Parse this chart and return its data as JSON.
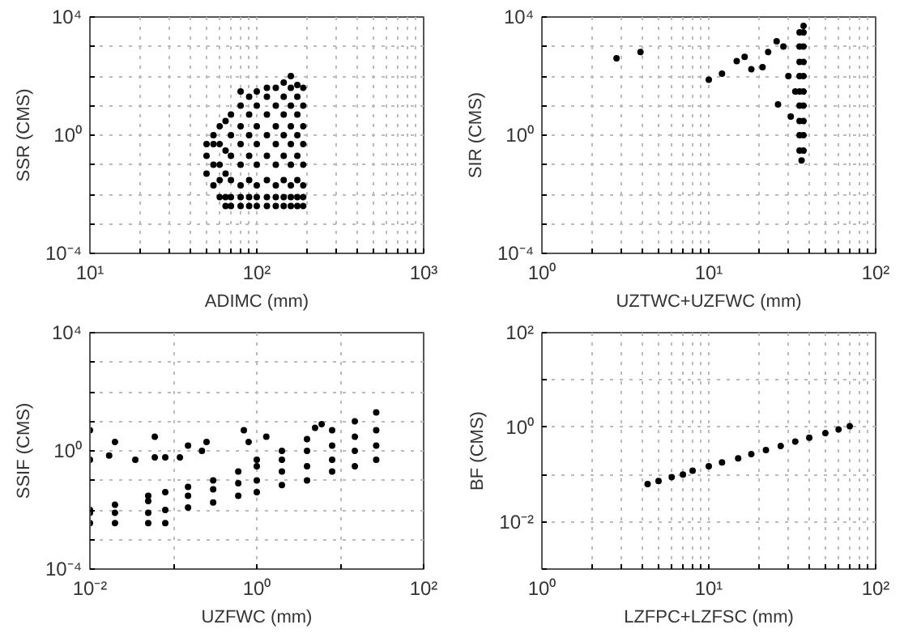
{
  "chart_data": [
    {
      "type": "scatter",
      "xlabel": "ADIMC (mm)",
      "ylabel": "SSR (CMS)",
      "log": "xy",
      "grid": true,
      "marker": "circle",
      "color": "#000000",
      "xlim": [
        10,
        1000
      ],
      "ylim": [
        0.0001,
        10000
      ],
      "xticks": [
        {
          "value": 10,
          "label": "10¹"
        },
        {
          "value": 20,
          "label": null
        },
        {
          "value": 30,
          "label": null
        },
        {
          "value": 40,
          "label": null
        },
        {
          "value": 50,
          "label": null
        },
        {
          "value": 60,
          "label": null
        },
        {
          "value": 70,
          "label": null
        },
        {
          "value": 80,
          "label": null
        },
        {
          "value": 90,
          "label": null
        },
        {
          "value": 100,
          "label": "10²"
        },
        {
          "value": 200,
          "label": null
        },
        {
          "value": 300,
          "label": null
        },
        {
          "value": 400,
          "label": null
        },
        {
          "value": 500,
          "label": null
        },
        {
          "value": 600,
          "label": null
        },
        {
          "value": 700,
          "label": null
        },
        {
          "value": 800,
          "label": null
        },
        {
          "value": 900,
          "label": null
        },
        {
          "value": 1000,
          "label": "10³"
        }
      ],
      "yticks": [
        {
          "value": 0.0001,
          "label": "10⁻⁴"
        },
        {
          "value": 0.001,
          "label": null
        },
        {
          "value": 0.01,
          "label": null
        },
        {
          "value": 0.1,
          "label": null
        },
        {
          "value": 1,
          "label": "10⁰"
        },
        {
          "value": 10,
          "label": null
        },
        {
          "value": 100,
          "label": null
        },
        {
          "value": 1000,
          "label": null
        },
        {
          "value": 10000,
          "label": "10⁴"
        }
      ],
      "x": [
        50,
        50,
        50,
        55,
        55,
        55,
        55,
        60,
        60,
        60,
        60,
        60,
        65,
        65,
        65,
        65,
        65,
        70,
        70,
        70,
        70,
        70,
        70,
        80,
        80,
        80,
        80,
        80,
        80,
        80,
        80,
        90,
        90,
        90,
        90,
        90,
        90,
        90,
        100,
        100,
        100,
        100,
        100,
        100,
        100,
        100,
        115,
        115,
        115,
        115,
        115,
        115,
        115,
        115,
        130,
        130,
        130,
        130,
        130,
        130,
        130,
        130,
        145,
        145,
        145,
        145,
        145,
        145,
        145,
        145,
        160,
        160,
        160,
        160,
        160,
        160,
        160,
        160,
        160,
        175,
        175,
        175,
        175,
        175,
        175,
        175,
        175,
        190,
        190,
        190,
        190,
        190,
        190,
        190,
        190
      ],
      "values": [
        0.05,
        0.2,
        0.5,
        0.02,
        0.1,
        0.5,
        1,
        0.008,
        0.03,
        0.1,
        0.5,
        2,
        0.004,
        0.008,
        0.05,
        0.3,
        3,
        0.004,
        0.008,
        0.03,
        0.2,
        1,
        5,
        0.004,
        0.008,
        0.02,
        0.1,
        0.5,
        2,
        10,
        30,
        0.004,
        0.008,
        0.03,
        0.2,
        1,
        5,
        20,
        0.004,
        0.008,
        0.02,
        0.1,
        0.5,
        2,
        10,
        30,
        0.004,
        0.008,
        0.03,
        0.2,
        1,
        5,
        20,
        40,
        0.004,
        0.008,
        0.02,
        0.1,
        0.5,
        2,
        10,
        40,
        0.004,
        0.008,
        0.03,
        0.2,
        1,
        5,
        20,
        60,
        0.004,
        0.008,
        0.02,
        0.1,
        0.5,
        2,
        10,
        40,
        100,
        0.004,
        0.008,
        0.03,
        0.2,
        1,
        5,
        20,
        50,
        0.004,
        0.008,
        0.02,
        0.1,
        0.5,
        2,
        10,
        40
      ]
    },
    {
      "type": "scatter",
      "xlabel": "UZTWC+UZFWC (mm)",
      "ylabel": "SIR (CMS)",
      "log": "xy",
      "grid": true,
      "marker": "circle",
      "color": "#000000",
      "xlim": [
        1,
        100
      ],
      "ylim": [
        0.0001,
        10000
      ],
      "xticks": [
        {
          "value": 1,
          "label": "10⁰"
        },
        {
          "value": 2,
          "label": null
        },
        {
          "value": 3,
          "label": null
        },
        {
          "value": 4,
          "label": null
        },
        {
          "value": 5,
          "label": null
        },
        {
          "value": 6,
          "label": null
        },
        {
          "value": 7,
          "label": null
        },
        {
          "value": 8,
          "label": null
        },
        {
          "value": 9,
          "label": null
        },
        {
          "value": 10,
          "label": "10¹"
        },
        {
          "value": 20,
          "label": null
        },
        {
          "value": 30,
          "label": null
        },
        {
          "value": 40,
          "label": null
        },
        {
          "value": 50,
          "label": null
        },
        {
          "value": 60,
          "label": null
        },
        {
          "value": 70,
          "label": null
        },
        {
          "value": 80,
          "label": null
        },
        {
          "value": 90,
          "label": null
        },
        {
          "value": 100,
          "label": "10²"
        }
      ],
      "yticks": [
        {
          "value": 0.0001,
          "label": "10⁻⁴"
        },
        {
          "value": 0.001,
          "label": null
        },
        {
          "value": 0.01,
          "label": null
        },
        {
          "value": 0.1,
          "label": null
        },
        {
          "value": 1,
          "label": "10⁰"
        },
        {
          "value": 10,
          "label": null
        },
        {
          "value": 100,
          "label": null
        },
        {
          "value": 1000,
          "label": null
        },
        {
          "value": 10000,
          "label": "10⁴"
        }
      ],
      "x": [
        2.8,
        3.9,
        10,
        12,
        14.7,
        16.4,
        18,
        21,
        22.7,
        25.5,
        26,
        31,
        30,
        33,
        28,
        36,
        35,
        35,
        35,
        35,
        35,
        35,
        35,
        35,
        35,
        37,
        37,
        37,
        37,
        37,
        37,
        37,
        37,
        37,
        37
      ],
      "values": [
        400,
        650,
        75,
        120,
        320,
        450,
        170,
        200,
        650,
        1500,
        11,
        4.3,
        100,
        30,
        1000,
        0.14,
        0.3,
        1,
        3,
        10,
        30,
        100,
        300,
        1000,
        3000,
        0.3,
        1,
        3,
        10,
        30,
        100,
        300,
        1000,
        3000,
        5000
      ]
    },
    {
      "type": "scatter",
      "xlabel": "UZFWC (mm)",
      "ylabel": "SSIF (CMS)",
      "log": "xy",
      "grid": true,
      "marker": "circle",
      "color": "#000000",
      "xlim": [
        0.01,
        100
      ],
      "ylim": [
        0.0001,
        10000
      ],
      "xticks": [
        {
          "value": 0.01,
          "label": "10⁻²"
        },
        {
          "value": 0.1,
          "label": null
        },
        {
          "value": 1,
          "label": "10⁰"
        },
        {
          "value": 10,
          "label": null
        },
        {
          "value": 100,
          "label": "10²"
        }
      ],
      "yticks": [
        {
          "value": 0.0001,
          "label": "10⁻⁴"
        },
        {
          "value": 0.001,
          "label": null
        },
        {
          "value": 0.01,
          "label": null
        },
        {
          "value": 0.1,
          "label": null
        },
        {
          "value": 1,
          "label": "10⁰"
        },
        {
          "value": 10,
          "label": null
        },
        {
          "value": 100,
          "label": null
        },
        {
          "value": 1000,
          "label": null
        },
        {
          "value": 10000,
          "label": "10⁴"
        }
      ],
      "x": [
        0.01,
        0.01,
        0.01,
        0.02,
        0.02,
        0.02,
        0.05,
        0.05,
        0.05,
        0.05,
        0.08,
        0.08,
        0.08,
        0.15,
        0.15,
        0.15,
        0.3,
        0.3,
        0.3,
        0.6,
        0.6,
        0.6,
        1,
        1,
        1,
        1,
        2,
        2,
        2,
        2,
        4,
        4,
        4,
        4,
        8,
        8,
        8,
        8,
        15,
        15,
        15,
        15,
        27,
        27,
        27,
        27,
        0.01,
        0.01,
        0.017,
        0.02,
        0.035,
        0.06,
        0.06,
        0.08,
        0.12,
        0.15,
        0.22,
        0.25,
        0.7,
        0.8,
        1.3,
        5,
        6
      ],
      "values": [
        0.0036,
        0.008,
        0.01,
        0.0036,
        0.008,
        0.015,
        0.0036,
        0.008,
        0.02,
        0.03,
        0.0036,
        0.01,
        0.04,
        0.012,
        0.03,
        0.06,
        0.018,
        0.05,
        0.1,
        0.03,
        0.08,
        0.2,
        0.04,
        0.1,
        0.3,
        0.5,
        0.07,
        0.2,
        0.5,
        1,
        0.1,
        0.3,
        1,
        2.5,
        0.2,
        0.5,
        1.5,
        5,
        0.3,
        1,
        3,
        10,
        0.5,
        1.5,
        5,
        20,
        5,
        0.5,
        0.7,
        2,
        0.5,
        3,
        0.6,
        0.6,
        0.6,
        1.5,
        1,
        2,
        5,
        2,
        3,
        6,
        8
      ]
    },
    {
      "type": "scatter",
      "xlabel": "LZFPC+LZFSC (mm)",
      "ylabel": "BF (CMS)",
      "log": "xy",
      "grid": true,
      "marker": "circle",
      "color": "#000000",
      "xlim": [
        1,
        100
      ],
      "ylim": [
        0.001,
        100
      ],
      "xticks": [
        {
          "value": 1,
          "label": "10⁰"
        },
        {
          "value": 2,
          "label": null
        },
        {
          "value": 3,
          "label": null
        },
        {
          "value": 4,
          "label": null
        },
        {
          "value": 5,
          "label": null
        },
        {
          "value": 6,
          "label": null
        },
        {
          "value": 7,
          "label": null
        },
        {
          "value": 8,
          "label": null
        },
        {
          "value": 9,
          "label": null
        },
        {
          "value": 10,
          "label": "10¹"
        },
        {
          "value": 20,
          "label": null
        },
        {
          "value": 30,
          "label": null
        },
        {
          "value": 40,
          "label": null
        },
        {
          "value": 50,
          "label": null
        },
        {
          "value": 60,
          "label": null
        },
        {
          "value": 70,
          "label": null
        },
        {
          "value": 80,
          "label": null
        },
        {
          "value": 90,
          "label": null
        },
        {
          "value": 100,
          "label": "10²"
        }
      ],
      "yticks": [
        {
          "value": 0.001,
          "label": null
        },
        {
          "value": 0.01,
          "label": "10⁻²"
        },
        {
          "value": 0.1,
          "label": null
        },
        {
          "value": 1,
          "label": "10⁰"
        },
        {
          "value": 10,
          "label": null
        },
        {
          "value": 100,
          "label": "10²"
        }
      ],
      "x": [
        4.3,
        5,
        6,
        7,
        8,
        10,
        12,
        15,
        18,
        22,
        27,
        33,
        40,
        50,
        60,
        70
      ],
      "values": [
        0.063,
        0.073,
        0.088,
        0.1,
        0.12,
        0.15,
        0.18,
        0.22,
        0.27,
        0.33,
        0.4,
        0.5,
        0.6,
        0.75,
        0.9,
        1.05
      ]
    }
  ]
}
